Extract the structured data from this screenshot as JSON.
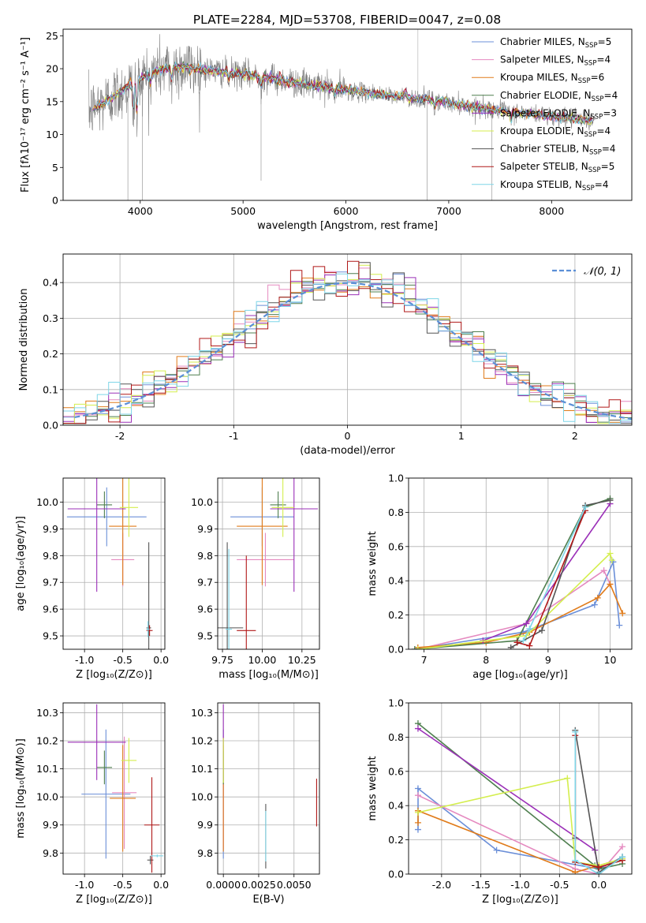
{
  "figure_title": "PLATE=2284, MJD=53708, FIBERID=0047, z=0.08",
  "models": [
    {
      "name": "Chabrier MILES, N_SSP=5",
      "label_main": "Chabrier MILES, N",
      "label_sub": "SSP",
      "label_end": "=5",
      "color": "#6b8fd8"
    },
    {
      "name": "Salpeter MILES, N_SSP=4",
      "label_main": "Salpeter MILES, N",
      "label_sub": "SSP",
      "label_end": "=4",
      "color": "#e58ac0"
    },
    {
      "name": "Kroupa MILES, N_SSP=6",
      "label_main": "Kroupa MILES, N",
      "label_sub": "SSP",
      "label_end": "=6",
      "color": "#e07b1a"
    },
    {
      "name": "Chabrier ELODIE, N_SSP=4",
      "label_main": "Chabrier ELODIE, N",
      "label_sub": "SSP",
      "label_end": "=4",
      "color": "#4f7f4f"
    },
    {
      "name": "Salpeter ELODIE, N_SSP=3",
      "label_main": "Salpeter ELODIE, N",
      "label_sub": "SSP",
      "label_end": "=3",
      "color": "#9b30b8"
    },
    {
      "name": "Kroupa ELODIE, N_SSP=4",
      "label_main": "Kroupa ELODIE, N",
      "label_sub": "SSP",
      "label_end": "=4",
      "color": "#d4ee4e"
    },
    {
      "name": "Chabrier STELIB, N_SSP=4",
      "label_main": "Chabrier STELIB, N",
      "label_sub": "SSP",
      "label_end": "=4",
      "color": "#555555"
    },
    {
      "name": "Salpeter STELIB, N_SSP=5",
      "label_main": "Salpeter STELIB, N",
      "label_sub": "SSP",
      "label_end": "=5",
      "color": "#b01818"
    },
    {
      "name": "Kroupa STELIB, N_SSP=4",
      "label_main": "Kroupa STELIB, N",
      "label_sub": "SSP",
      "label_end": "=4",
      "color": "#7fd6e8"
    }
  ],
  "chart_data": [
    {
      "id": "spectrum",
      "type": "line",
      "title": "PLATE=2284, MJD=53708, FIBERID=0047, z=0.08",
      "xlabel": "wavelength [Angstrom, rest frame]",
      "ylabel": "Flux [fλ10⁻¹⁷ erg cm⁻² s⁻¹ A⁻¹]",
      "xlim": [
        3250,
        8780
      ],
      "ylim": [
        0,
        26
      ],
      "xticks": [
        4000,
        5000,
        6000,
        7000,
        8000
      ],
      "yticks": [
        0,
        5,
        10,
        15,
        20,
        25
      ],
      "legend": "top-right",
      "continuum_anchors": [
        [
          3500,
          13.5
        ],
        [
          3700,
          15.5
        ],
        [
          3900,
          17.5
        ],
        [
          4000,
          18.5
        ],
        [
          4200,
          20
        ],
        [
          4400,
          20.3
        ],
        [
          4800,
          19.5
        ],
        [
          5200,
          18.8
        ],
        [
          5600,
          17.6
        ],
        [
          6000,
          16.8
        ],
        [
          6400,
          15.9
        ],
        [
          6800,
          15.3
        ],
        [
          7200,
          14.3
        ],
        [
          7600,
          13.5
        ],
        [
          8000,
          12.8
        ],
        [
          8420,
          12.0
        ]
      ],
      "features": [
        [
          3934,
          -5
        ],
        [
          3968,
          -6
        ],
        [
          4102,
          -2
        ],
        [
          4305,
          -2.5
        ],
        [
          4861,
          -1.5
        ],
        [
          5175,
          -2
        ],
        [
          5893,
          -1.5
        ],
        [
          6563,
          1
        ],
        [
          6583,
          1
        ],
        [
          6863,
          -1.5
        ],
        [
          7605,
          -2
        ]
      ]
    },
    {
      "id": "residuals",
      "type": "histogram",
      "xlabel": "(data-model)/error",
      "ylabel": "Normed distribution",
      "xlim": [
        -2.5,
        2.5
      ],
      "ylim": [
        0,
        0.48
      ],
      "xticks": [
        -2,
        -1,
        0,
        1,
        2
      ],
      "yticks": [
        0.0,
        0.1,
        0.2,
        0.3,
        0.4
      ],
      "grid": true,
      "legend": "top-right",
      "gaussian_label": "𝒩(0, 1)",
      "bins": 50
    },
    {
      "id": "age_vs_Z",
      "type": "scatter",
      "xlabel": "Z [log₁₀(Z/Z⊙)]",
      "ylabel": "age  [log₁₀(age/yr)]",
      "xlim": [
        -1.28,
        0.05
      ],
      "ylim": [
        9.45,
        10.09
      ],
      "xticks": [
        -1.0,
        -0.5,
        0.0
      ],
      "yticks": [
        9.5,
        9.6,
        9.7,
        9.8,
        9.9,
        10.0
      ],
      "grid": true,
      "points": [
        {
          "model": 0,
          "x": -0.71,
          "y": 9.945,
          "xerr": 0.52,
          "yerr": 0.11
        },
        {
          "model": 1,
          "x": -0.5,
          "y": 9.785,
          "xerr": 0.15,
          "yerr": 0.1
        },
        {
          "model": 2,
          "x": -0.5,
          "y": 9.91,
          "xerr": 0.18,
          "yerr": 0.22
        },
        {
          "model": 3,
          "x": -0.74,
          "y": 9.99,
          "xerr": 0.1,
          "yerr": 0.05
        },
        {
          "model": 4,
          "x": -0.84,
          "y": 9.975,
          "xerr": 0.38,
          "yerr": 0.31
        },
        {
          "model": 5,
          "x": -0.42,
          "y": 9.98,
          "xerr": 0.12,
          "yerr": 0.11
        },
        {
          "model": 6,
          "x": -0.16,
          "y": 9.53,
          "xerr": 0.03,
          "yerr": 0.32
        },
        {
          "model": 7,
          "x": -0.15,
          "y": 9.52,
          "xerr": 0.04,
          "yerr": 0.02
        },
        {
          "model": 8,
          "x": -0.17,
          "y": 9.525,
          "xerr": 0.02,
          "yerr": 0.03
        }
      ]
    },
    {
      "id": "age_vs_mass",
      "type": "scatter",
      "xlabel": "mass [log₁₀(M/M⊙)]",
      "ylabel": "",
      "xlim": [
        9.72,
        10.36
      ],
      "ylim": [
        9.45,
        10.09
      ],
      "xticks": [
        9.75,
        10.0,
        10.25
      ],
      "yticks": [
        9.5,
        9.6,
        9.7,
        9.8,
        9.9,
        10.0
      ],
      "grid": true,
      "points": [
        {
          "model": 0,
          "x": 10.0,
          "y": 9.945,
          "xerr": 0.2,
          "yerr": 0.11
        },
        {
          "model": 1,
          "x": 10.02,
          "y": 9.785,
          "xerr": 0.18,
          "yerr": 0.1
        },
        {
          "model": 2,
          "x": 10.0,
          "y": 9.91,
          "xerr": 0.16,
          "yerr": 0.22
        },
        {
          "model": 3,
          "x": 10.1,
          "y": 9.99,
          "xerr": 0.05,
          "yerr": 0.05
        },
        {
          "model": 4,
          "x": 10.2,
          "y": 9.975,
          "xerr": 0.15,
          "yerr": 0.31
        },
        {
          "model": 5,
          "x": 10.13,
          "y": 9.98,
          "xerr": 0.07,
          "yerr": 0.11
        },
        {
          "model": 6,
          "x": 9.78,
          "y": 9.53,
          "xerr": 0.1,
          "yerr": 0.32
        },
        {
          "model": 7,
          "x": 9.9,
          "y": 9.52,
          "xerr": 0.06,
          "yerr": 0.28
        },
        {
          "model": 8,
          "x": 9.79,
          "y": 9.525,
          "xerr": 0.02,
          "yerr": 0.3
        }
      ]
    },
    {
      "id": "weight_vs_age",
      "type": "line",
      "xlabel": "age  [log₁₀(age/yr)]",
      "ylabel": "mass weight",
      "xlim": [
        6.75,
        10.35
      ],
      "ylim": [
        0,
        1.0
      ],
      "xticks": [
        7,
        8,
        9,
        10
      ],
      "yticks": [
        0.0,
        0.2,
        0.4,
        0.6,
        0.8,
        1.0
      ],
      "grid": true,
      "series": [
        {
          "model": 0,
          "x": [
            6.85,
            8.6,
            9.75,
            10.05,
            10.15
          ],
          "y": [
            0.0,
            0.1,
            0.26,
            0.51,
            0.14
          ]
        },
        {
          "model": 1,
          "x": [
            6.9,
            8.65,
            9.9,
            10.0
          ],
          "y": [
            0.0,
            0.15,
            0.46,
            0.38
          ]
        },
        {
          "model": 2,
          "x": [
            6.9,
            8.0,
            8.7,
            9.8,
            10.0,
            10.2
          ],
          "y": [
            0.01,
            0.04,
            0.1,
            0.3,
            0.38,
            0.21
          ]
        },
        {
          "model": 3,
          "x": [
            6.85,
            8.5,
            9.6,
            10.0
          ],
          "y": [
            0.0,
            0.05,
            0.83,
            0.88
          ]
        },
        {
          "model": 4,
          "x": [
            7.95,
            8.65,
            10.0
          ],
          "y": [
            0.05,
            0.15,
            0.85
          ]
        },
        {
          "model": 5,
          "x": [
            6.9,
            8.65,
            10.0,
            10.03
          ],
          "y": [
            0.0,
            0.08,
            0.56,
            0.52
          ]
        },
        {
          "model": 6,
          "x": [
            8.4,
            8.9,
            9.6,
            10.0
          ],
          "y": [
            0.01,
            0.11,
            0.84,
            0.87
          ]
        },
        {
          "model": 7,
          "x": [
            8.5,
            8.7,
            9.6
          ],
          "y": [
            0.04,
            0.02,
            0.81
          ]
        },
        {
          "model": 8,
          "x": [
            8.6,
            8.7,
            9.6
          ],
          "y": [
            0.05,
            0.12,
            0.83
          ]
        }
      ]
    },
    {
      "id": "mass_vs_Z",
      "type": "scatter",
      "xlabel": "Z [log₁₀(Z/Z⊙)]",
      "ylabel": "mass [log₁₀(M/M⊙)]",
      "xlim": [
        -1.28,
        0.05
      ],
      "ylim": [
        9.725,
        10.335
      ],
      "xticks": [
        -1.0,
        -0.5,
        0.0
      ],
      "yticks": [
        9.8,
        9.9,
        10.0,
        10.1,
        10.2,
        10.3
      ],
      "grid": true,
      "points": [
        {
          "model": 0,
          "x": -0.72,
          "y": 10.01,
          "xerr": 0.32,
          "yerr": 0.23
        },
        {
          "model": 1,
          "x": -0.48,
          "y": 10.015,
          "xerr": 0.16,
          "yerr": 0.2
        },
        {
          "model": 2,
          "x": -0.5,
          "y": 9.995,
          "xerr": 0.17,
          "yerr": 0.19
        },
        {
          "model": 3,
          "x": -0.74,
          "y": 10.105,
          "xerr": 0.1,
          "yerr": 0.06
        },
        {
          "model": 4,
          "x": -0.84,
          "y": 10.195,
          "xerr": 0.38,
          "yerr": 0.135
        },
        {
          "model": 5,
          "x": -0.42,
          "y": 10.13,
          "xerr": 0.1,
          "yerr": 0.08
        },
        {
          "model": 6,
          "x": -0.14,
          "y": 9.775,
          "xerr": 0.04,
          "yerr": 0.015
        },
        {
          "model": 7,
          "x": -0.12,
          "y": 9.9,
          "xerr": 0.1,
          "yerr": 0.17
        },
        {
          "model": 8,
          "x": -0.05,
          "y": 9.79,
          "xerr": 0.08,
          "yerr": 0.005
        }
      ]
    },
    {
      "id": "mass_vs_EBV",
      "type": "scatter",
      "xlabel": "E(B-V)",
      "ylabel": "",
      "xlim": [
        -0.0004,
        0.0068
      ],
      "ylim": [
        9.725,
        10.335
      ],
      "xticks": [
        0.0,
        0.0025,
        0.005
      ],
      "xtick_labels": [
        "0.0000",
        "0.0025",
        "0.0050"
      ],
      "yticks": [
        9.8,
        9.9,
        10.0,
        10.1,
        10.2,
        10.3
      ],
      "grid": true,
      "points": [
        {
          "model": 0,
          "x": 0.0,
          "y": 10.01,
          "xerr": 0.0,
          "yerr": 0.23
        },
        {
          "model": 1,
          "x": 0.0,
          "y": 10.015,
          "xerr": 0.0,
          "yerr": 0.2
        },
        {
          "model": 2,
          "x": 0.0,
          "y": 9.995,
          "xerr": 0.0,
          "yerr": 0.19
        },
        {
          "model": 3,
          "x": 0.0,
          "y": 10.105,
          "xerr": 0.0,
          "yerr": 0.06
        },
        {
          "model": 4,
          "x": 0.0,
          "y": 10.195,
          "xerr": 0.0,
          "yerr": 0.135
        },
        {
          "model": 5,
          "x": 0.0,
          "y": 10.13,
          "xerr": 0.0,
          "yerr": 0.08
        },
        {
          "model": 6,
          "x": 0.003,
          "y": 9.86,
          "xerr": 0.0,
          "yerr": 0.115
        },
        {
          "model": 7,
          "x": 0.0066,
          "y": 9.98,
          "xerr": 0.0,
          "yerr": 0.085
        },
        {
          "model": 8,
          "x": 0.003,
          "y": 9.86,
          "xerr": 0.0,
          "yerr": 0.09
        }
      ]
    },
    {
      "id": "weight_vs_Z",
      "type": "line",
      "xlabel": "Z [log₁₀(Z/Z⊙)]",
      "ylabel": "mass weight",
      "xlim": [
        -2.42,
        0.42
      ],
      "ylim": [
        0,
        1.0
      ],
      "xticks": [
        -2.0,
        -1.5,
        -1.0,
        -0.5,
        0.0
      ],
      "yticks": [
        0.0,
        0.2,
        0.4,
        0.6,
        0.8,
        1.0
      ],
      "grid": true,
      "series": [
        {
          "model": 0,
          "x": [
            -2.3,
            -2.3,
            -1.3,
            0.0,
            0.3
          ],
          "y": [
            0.26,
            0.5,
            0.14,
            0.03,
            0.1
          ]
        },
        {
          "model": 1,
          "x": [
            -2.3,
            -0.3,
            0.0,
            0.3
          ],
          "y": [
            0.46,
            0.03,
            0.0,
            0.16
          ]
        },
        {
          "model": 2,
          "x": [
            -2.3,
            -2.3,
            -0.3,
            0.0,
            0.3
          ],
          "y": [
            0.3,
            0.37,
            0.01,
            0.05,
            0.09
          ]
        },
        {
          "model": 3,
          "x": [
            -2.3,
            -0.05,
            0.0,
            0.3
          ],
          "y": [
            0.88,
            0.05,
            0.03,
            0.06
          ]
        },
        {
          "model": 4,
          "x": [
            -2.3,
            -0.05,
            0.0
          ],
          "y": [
            0.85,
            0.14,
            0.01
          ]
        },
        {
          "model": 5,
          "x": [
            -2.3,
            -0.4,
            -0.3,
            0.0,
            0.3
          ],
          "y": [
            0.36,
            0.56,
            0.07,
            0.05,
            0.09
          ]
        },
        {
          "model": 6,
          "x": [
            -0.3,
            -0.3,
            0.0,
            0.3
          ],
          "y": [
            0.21,
            0.84,
            0.01,
            0.1
          ]
        },
        {
          "model": 7,
          "x": [
            -0.3,
            -0.3,
            0.0,
            0.3
          ],
          "y": [
            0.81,
            0.07,
            0.04,
            0.08
          ]
        },
        {
          "model": 8,
          "x": [
            -0.3,
            -0.3,
            0.0,
            0.3
          ],
          "y": [
            0.83,
            0.08,
            0.0,
            0.1
          ]
        }
      ]
    }
  ]
}
